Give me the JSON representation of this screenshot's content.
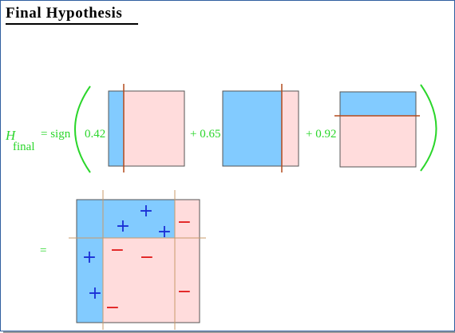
{
  "title": "Final Hypothesis",
  "formula": {
    "h_letter": "H",
    "h_subscript": "final",
    "sign_label": "= sign",
    "weights": [
      "0.42",
      "+ 0.65",
      "+ 0.92"
    ],
    "equals": "="
  },
  "marks": {
    "plus": "+",
    "minus": "−"
  },
  "colors": {
    "positive_region": "#82cbff",
    "negative_region": "#ffdcdc",
    "split_line": "#b34a1c",
    "formula_green": "#2bd62b",
    "plus_sign": "#1a2fd6",
    "minus_sign": "#e01a1a"
  }
}
